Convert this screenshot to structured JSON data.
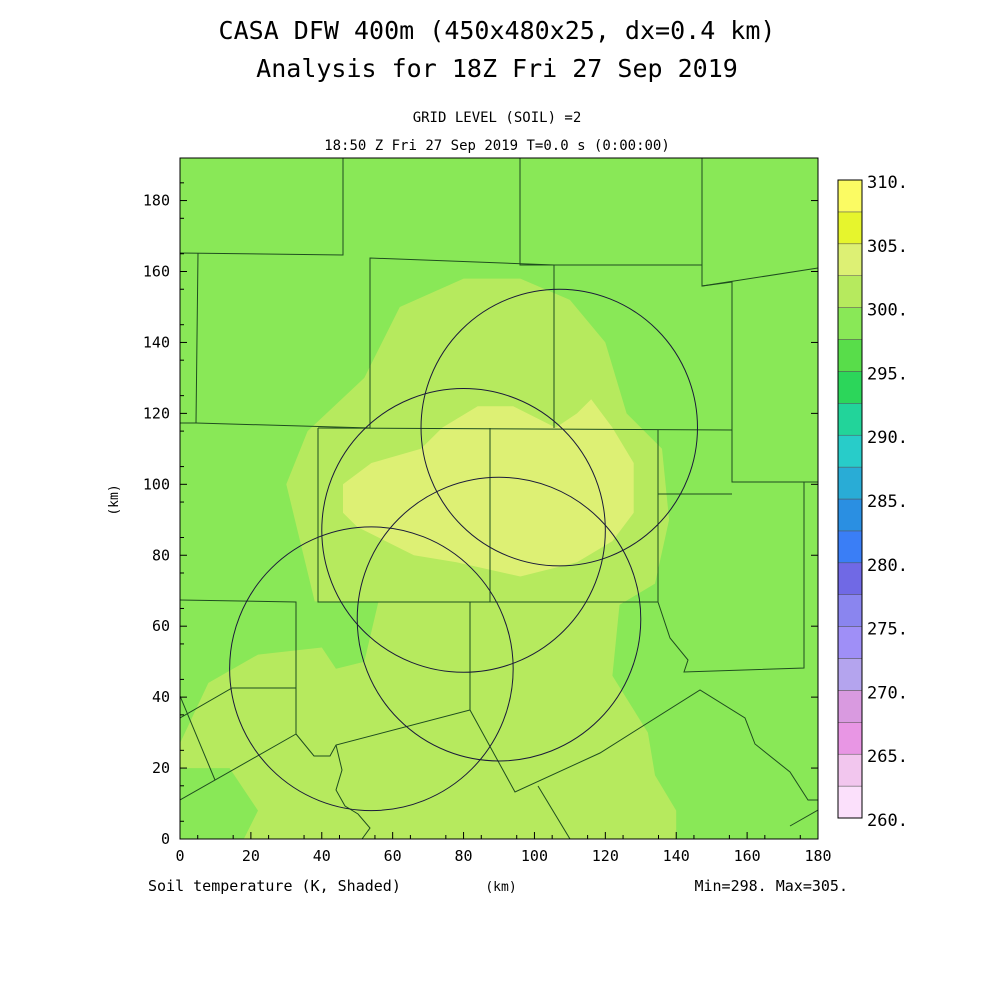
{
  "title": "CASA DFW 400m (450x480x25, dx=0.4 km)",
  "subtitle": "Analysis for 18Z Fri 27 Sep 2019",
  "level_label": "GRID LEVEL (SOIL) =2",
  "time_label": "18:50 Z Fri 27 Sep 2019   T=0.0 s (0:00:00)",
  "footer": {
    "left": "Soil temperature (K, Shaded)",
    "center": "(km)",
    "right": "Min=298. Max=305."
  },
  "chart_data": {
    "type": "heatmap",
    "variable": "Soil temperature",
    "units": "K",
    "xlabel": "(km)",
    "ylabel": "(km)",
    "xlim": [
      0,
      180
    ],
    "ylim": [
      0,
      192
    ],
    "xticks": [
      0,
      20,
      40,
      60,
      80,
      100,
      120,
      140,
      160,
      180
    ],
    "yticks": [
      0,
      20,
      40,
      60,
      80,
      100,
      120,
      140,
      160,
      180
    ],
    "min": 298,
    "max": 305,
    "colorbar": {
      "labels": [
        "310.",
        "305.",
        "300.",
        "295.",
        "290.",
        "285.",
        "280.",
        "275.",
        "270.",
        "265.",
        "260."
      ],
      "levels": [
        {
          "from": 260.0,
          "to": 262.5,
          "color": "#fbe0fb"
        },
        {
          "from": 262.5,
          "to": 265.0,
          "color": "#f2c6ee"
        },
        {
          "from": 265.0,
          "to": 267.5,
          "color": "#e896e4"
        },
        {
          "from": 267.5,
          "to": 270.0,
          "color": "#d99ae0"
        },
        {
          "from": 270.0,
          "to": 272.5,
          "color": "#b4a4ee"
        },
        {
          "from": 272.5,
          "to": 275.0,
          "color": "#9f8ff7"
        },
        {
          "from": 275.0,
          "to": 277.5,
          "color": "#8a85ef"
        },
        {
          "from": 277.5,
          "to": 280.0,
          "color": "#7069e5"
        },
        {
          "from": 280.0,
          "to": 282.5,
          "color": "#3a7ef6"
        },
        {
          "from": 282.5,
          "to": 285.0,
          "color": "#2a8fe2"
        },
        {
          "from": 285.0,
          "to": 287.5,
          "color": "#29acd6"
        },
        {
          "from": 287.5,
          "to": 290.0,
          "color": "#28ccc9"
        },
        {
          "from": 290.0,
          "to": 292.5,
          "color": "#22d49a"
        },
        {
          "from": 292.5,
          "to": 295.0,
          "color": "#2cd65a"
        },
        {
          "from": 295.0,
          "to": 297.5,
          "color": "#58dd4a"
        },
        {
          "from": 297.5,
          "to": 300.0,
          "color": "#89e857"
        },
        {
          "from": 300.0,
          "to": 302.5,
          "color": "#b6ea5e"
        },
        {
          "from": 302.5,
          "to": 305.0,
          "color": "#ddf074"
        },
        {
          "from": 305.0,
          "to": 307.5,
          "color": "#e6f52d"
        },
        {
          "from": 307.5,
          "to": 310.0,
          "color": "#fbfb63"
        }
      ]
    },
    "regions": [
      {
        "name": "warm-zone-302-5",
        "value": 301.5,
        "polygon": [
          [
            0,
            6
          ],
          [
            0,
            27
          ],
          [
            8,
            44
          ],
          [
            22,
            52
          ],
          [
            40,
            54
          ],
          [
            44,
            48
          ],
          [
            52,
            50
          ],
          [
            56,
            67
          ],
          [
            38,
            67
          ],
          [
            30,
            100
          ],
          [
            36,
            115
          ],
          [
            52,
            130
          ],
          [
            62,
            150
          ],
          [
            80,
            158
          ],
          [
            96,
            158
          ],
          [
            110,
            152
          ],
          [
            120,
            140
          ],
          [
            126,
            120
          ],
          [
            136,
            110
          ],
          [
            138,
            90
          ],
          [
            134,
            72
          ],
          [
            124,
            66
          ],
          [
            122,
            46
          ],
          [
            132,
            30
          ],
          [
            134,
            18
          ],
          [
            140,
            8
          ],
          [
            140,
            0
          ],
          [
            18,
            0
          ],
          [
            22,
            8
          ],
          [
            14,
            20
          ],
          [
            0,
            20
          ]
        ]
      },
      {
        "name": "hot-zone-305",
        "value": 303.5,
        "polygon": [
          [
            46,
            100
          ],
          [
            54,
            106
          ],
          [
            68,
            110
          ],
          [
            74,
            116
          ],
          [
            84,
            122
          ],
          [
            94,
            122
          ],
          [
            106,
            116
          ],
          [
            112,
            120
          ],
          [
            116,
            124
          ],
          [
            122,
            116
          ],
          [
            128,
            106
          ],
          [
            128,
            92
          ],
          [
            122,
            84
          ],
          [
            112,
            78
          ],
          [
            96,
            74
          ],
          [
            78,
            78
          ],
          [
            66,
            80
          ],
          [
            58,
            84
          ],
          [
            50,
            88
          ],
          [
            46,
            92
          ]
        ]
      }
    ],
    "background_value": 298.5,
    "range_rings": [
      {
        "center": [
          107,
          116
        ],
        "radius": 39
      },
      {
        "center": [
          80,
          87
        ],
        "radius": 40
      },
      {
        "center": [
          54,
          48
        ],
        "radius": 40
      },
      {
        "center": [
          90,
          62
        ],
        "radius": 40
      }
    ]
  }
}
